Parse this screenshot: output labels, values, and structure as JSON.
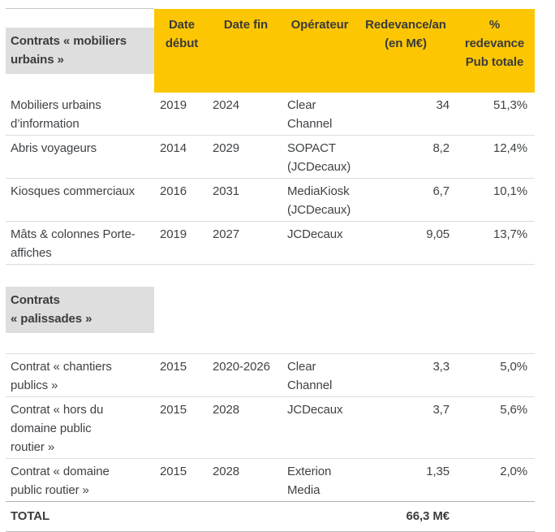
{
  "colors": {
    "header_bg": "#fcc603",
    "header_text": "#3b3b3b",
    "section_bg": "#dedede",
    "body_text": "#3f4245",
    "separator": "#dcdcdc"
  },
  "chart_data": {
    "type": "table",
    "columns": [
      "",
      "Date début",
      "Date fin",
      "Opérateur",
      "Redevance/an (en M€)",
      "% redevance Pub totale"
    ],
    "sections": [
      {
        "section": "Contrats « mobiliers urbains »",
        "rows": [
          [
            "Mobiliers urbains d’information",
            "2019",
            "2024",
            "Clear Channel",
            "34",
            "51,3%"
          ],
          [
            "Abris voyageurs",
            "2014",
            "2029",
            "SOPACT (JCDecaux)",
            "8,2",
            "12,4%"
          ],
          [
            "Kiosques commerciaux",
            "2016",
            "2031",
            "MediaKiosk (JCDecaux)",
            "6,7",
            "10,1%"
          ],
          [
            "Mâts & colonnes Porte-affiches",
            "2019",
            "2027",
            "JCDecaux",
            "9,05",
            "13,7%"
          ]
        ]
      },
      {
        "section": "Contrats « palissades »",
        "rows": [
          [
            "Contrat « chantiers publics »",
            "2015",
            "2020-2026",
            "Clear Channel",
            "3,3",
            "5,0%"
          ],
          [
            "Contrat « hors du domaine public routier »",
            "2015",
            "2028",
            "JCDecaux",
            "3,7",
            "5,6%"
          ],
          [
            "Contrat « domaine public routier »",
            "2015",
            "2028",
            "Exterion Media",
            "1,35",
            "2,0%"
          ]
        ]
      }
    ],
    "total": [
      "TOTAL",
      "",
      "",
      "",
      "66,3 M€",
      ""
    ]
  },
  "header": {
    "group": "Contrats « mobiliers\nurbains »",
    "date_debut": "Date\ndébut",
    "date_fin": "Date fin",
    "operateur": "Opérateur",
    "redevance": "Redevance/an\n(en M€)",
    "pct": "%\nredevance\nPub totale"
  },
  "rows": [
    {
      "label": "Mobiliers urbains\nd’information",
      "debut": "2019",
      "fin": "2024",
      "operateur": "Clear\nChannel",
      "redevance": "34",
      "pct": "51,3%"
    },
    {
      "label": "Abris voyageurs",
      "debut": "2014",
      "fin": "2029",
      "operateur": "SOPACT\n(JCDecaux)",
      "redevance": "8,2",
      "pct": "12,4%"
    },
    {
      "label": "Kiosques commerciaux",
      "debut": "2016",
      "fin": "2031",
      "operateur": "MediaKiosk\n(JCDecaux)",
      "redevance": "6,7",
      "pct": "10,1%"
    },
    {
      "label": "Mâts & colonnes Porte-\naffiches",
      "debut": "2019",
      "fin": "2027",
      "operateur": "JCDecaux",
      "redevance": "9,05",
      "pct": "13,7%"
    }
  ],
  "section2": {
    "label": "Contrats\n« palissades »"
  },
  "rows2": [
    {
      "label": "Contrat « chantiers\npublics »",
      "debut": "2015",
      "fin": "2020-2026",
      "operateur": "Clear\nChannel",
      "redevance": "3,3",
      "pct": "5,0%"
    },
    {
      "label": "Contrat « hors du\ndomaine public\nroutier »",
      "debut": "2015",
      "fin": "2028",
      "operateur": "JCDecaux",
      "redevance": "3,7",
      "pct": "5,6%"
    },
    {
      "label": "Contrat « domaine\npublic routier »",
      "debut": "2015",
      "fin": "2028",
      "operateur": "Exterion\nMedia",
      "redevance": "1,35",
      "pct": "2,0%"
    }
  ],
  "total": {
    "label": "TOTAL",
    "value": "66,3 M€"
  }
}
